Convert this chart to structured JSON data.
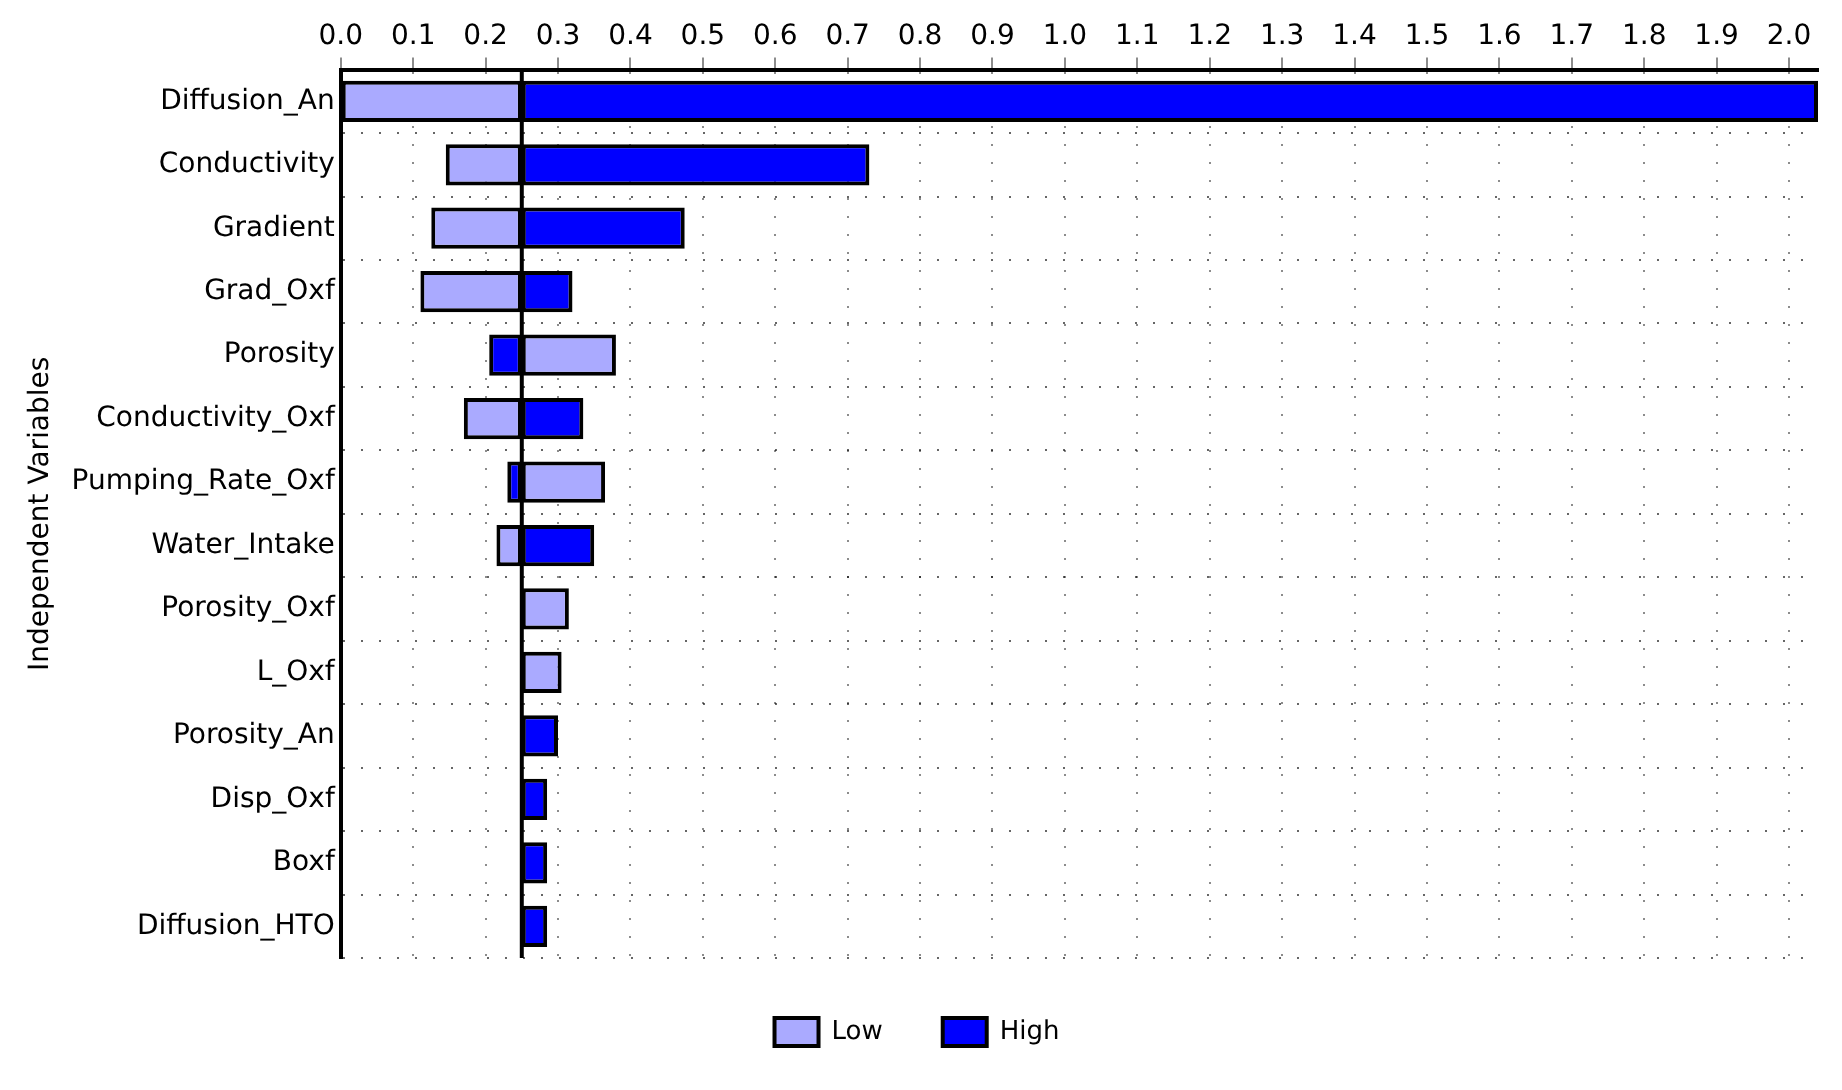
{
  "chart_data": {
    "type": "bar",
    "orientation": "horizontal",
    "ylabel": "Independent Variables",
    "categories": [
      "Diffusion_An",
      "Conductivity",
      "Gradient",
      "Grad_Oxf",
      "Porosity",
      "Conductivity_Oxf",
      "Pumping_Rate_Oxf",
      "Water_Intake",
      "Porosity_Oxf",
      "L_Oxf",
      "Porosity_An",
      "Disp_Oxf",
      "Boxf",
      "Diffusion_HTO"
    ],
    "series": [
      {
        "name": "Low",
        "color": "#aaaaff",
        "base": [
          0.25,
          0.25,
          0.25,
          0.25,
          0.25,
          0.25,
          0.25,
          0.25,
          0.25,
          0.25,
          null,
          null,
          null,
          null
        ],
        "values": [
          -0.25,
          -0.105,
          -0.125,
          -0.14,
          0.13,
          -0.08,
          0.115,
          -0.035,
          0.065,
          0.055,
          null,
          null,
          null,
          null
        ]
      },
      {
        "name": "High",
        "color": "#0000ff",
        "base": [
          0.25,
          0.25,
          0.25,
          0.25,
          0.25,
          0.25,
          0.25,
          0.25,
          null,
          null,
          0.25,
          0.25,
          0.25,
          0.25
        ],
        "values": [
          1.79,
          0.48,
          0.225,
          0.07,
          -0.045,
          0.085,
          -0.02,
          0.1,
          null,
          null,
          0.05,
          0.035,
          0.035,
          0.035
        ]
      }
    ],
    "xlim": [
      0,
      2.04
    ],
    "xticks": [
      {
        "value": 0,
        "label": "0.0"
      },
      0.1,
      0.2,
      0.3,
      0.4,
      0.5,
      0.6,
      0.7,
      0.8,
      0.9,
      {
        "value": 1,
        "label": "1.0"
      },
      1.1,
      1.2,
      1.3,
      1.4,
      1.5,
      1.6,
      1.7,
      1.8,
      1.9,
      {
        "value": 2,
        "label": "2.0"
      }
    ],
    "ref_lines": [
      {
        "axis": "x",
        "value": 0.25,
        "color": "#000000"
      }
    ],
    "grid": true,
    "legend": "bottom"
  }
}
